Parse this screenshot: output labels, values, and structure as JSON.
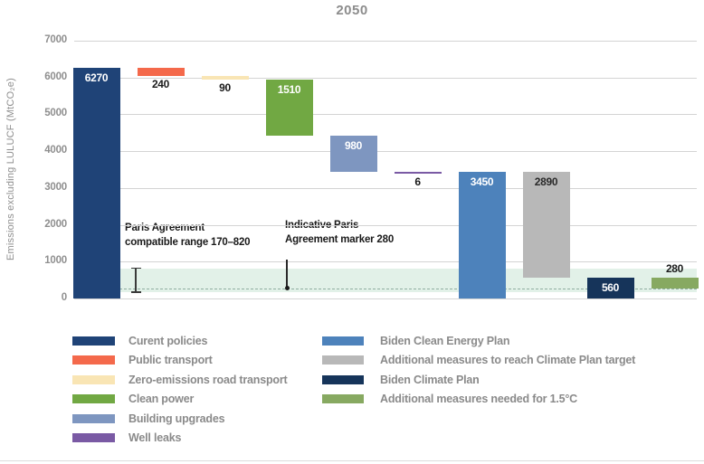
{
  "title": "2050",
  "chart_data": {
    "type": "bar",
    "subtype": "waterfall",
    "title": "2050",
    "xlabel": "",
    "ylabel": "Emissions excluding LULUCF (MtCO₂e)",
    "ylim": [
      0,
      7000
    ],
    "yticks": [
      0,
      1000,
      2000,
      3000,
      4000,
      5000,
      6000,
      7000
    ],
    "grid": "horizontal",
    "legend_position": "bottom",
    "bars": [
      {
        "name": "Curent policies",
        "value": 6270,
        "from": 0,
        "to": 6270,
        "color": "#1f4377",
        "label": "6270",
        "label_pos": "inside-top",
        "label_color": "#ffffff"
      },
      {
        "name": "Public transport",
        "value": 240,
        "from": 6030,
        "to": 6270,
        "color": "#f4694b",
        "label": "240",
        "label_pos": "below",
        "label_color": "#1a1a1a"
      },
      {
        "name": "Zero-emissions road transport",
        "value": 90,
        "from": 5940,
        "to": 6030,
        "color": "#f9e5b4",
        "label": "90",
        "label_pos": "below",
        "label_color": "#1a1a1a"
      },
      {
        "name": "Clean power",
        "value": 1510,
        "from": 4430,
        "to": 5940,
        "color": "#71a843",
        "label": "1510",
        "label_pos": "inside-top",
        "label_color": "#ffffff"
      },
      {
        "name": "Building upgrades",
        "value": 980,
        "from": 3450,
        "to": 4430,
        "color": "#7e96c0",
        "label": "980",
        "label_pos": "inside-top",
        "label_color": "#ffffff"
      },
      {
        "name": "Well leaks",
        "value": 6,
        "from": 3444,
        "to": 3450,
        "color": "#7a5aa4",
        "label": "6",
        "label_pos": "below",
        "label_color": "#1a1a1a"
      },
      {
        "name": "Biden Clean Energy Plan",
        "value": 3450,
        "from": 0,
        "to": 3450,
        "color": "#4d82bb",
        "label": "3450",
        "label_pos": "inside-top",
        "label_color": "#ffffff"
      },
      {
        "name": "Additional measures to reach Climate Plan target",
        "value": 2890,
        "from": 560,
        "to": 3450,
        "color": "#b8b8b8",
        "label": "2890",
        "label_pos": "inside-top",
        "label_color": "#2a2a2a"
      },
      {
        "name": "Biden Climate Plan",
        "value": 560,
        "from": 0,
        "to": 560,
        "color": "#16345a",
        "label": "560",
        "label_pos": "inside-middle",
        "label_color": "#ffffff"
      },
      {
        "name": "Additional measures needed for 1.5°C",
        "value": 280,
        "from": 280,
        "to": 560,
        "color": "#87a961",
        "label": "280",
        "label_pos": "above",
        "label_color": "#1a1a1a"
      }
    ],
    "band": {
      "from": 170,
      "to": 820,
      "color": "#e2f1e8"
    },
    "dashed_line": {
      "value": 280,
      "color": "#8fae9f"
    },
    "annotations": [
      {
        "id": "paris-range",
        "text_lines": [
          "Paris Agreement",
          "compatible range 170–820"
        ],
        "marker": "error-bar",
        "range": [
          170,
          820
        ]
      },
      {
        "id": "paris-marker",
        "text_lines": [
          "Indicative Paris",
          "Agreement marker 280"
        ],
        "marker": "dot-line",
        "value": 280
      }
    ]
  },
  "legend": {
    "columns": [
      [
        {
          "label": "Curent policies",
          "color": "#1f4377"
        },
        {
          "label": "Public transport",
          "color": "#f4694b"
        },
        {
          "label": "Zero-emissions road transport",
          "color": "#f9e5b4"
        },
        {
          "label": "Clean power",
          "color": "#71a843"
        },
        {
          "label": "Building upgrades",
          "color": "#7e96c0"
        },
        {
          "label": "Well leaks",
          "color": "#7a5aa4"
        }
      ],
      [
        {
          "label": "Biden Clean Energy Plan",
          "color": "#4d82bb"
        },
        {
          "label": "Additional measures to reach Climate Plan target",
          "color": "#b8b8b8"
        },
        {
          "label": "Biden Climate Plan",
          "color": "#16345a"
        },
        {
          "label": "Additional measures needed for 1.5°C",
          "color": "#87a961"
        }
      ]
    ]
  }
}
